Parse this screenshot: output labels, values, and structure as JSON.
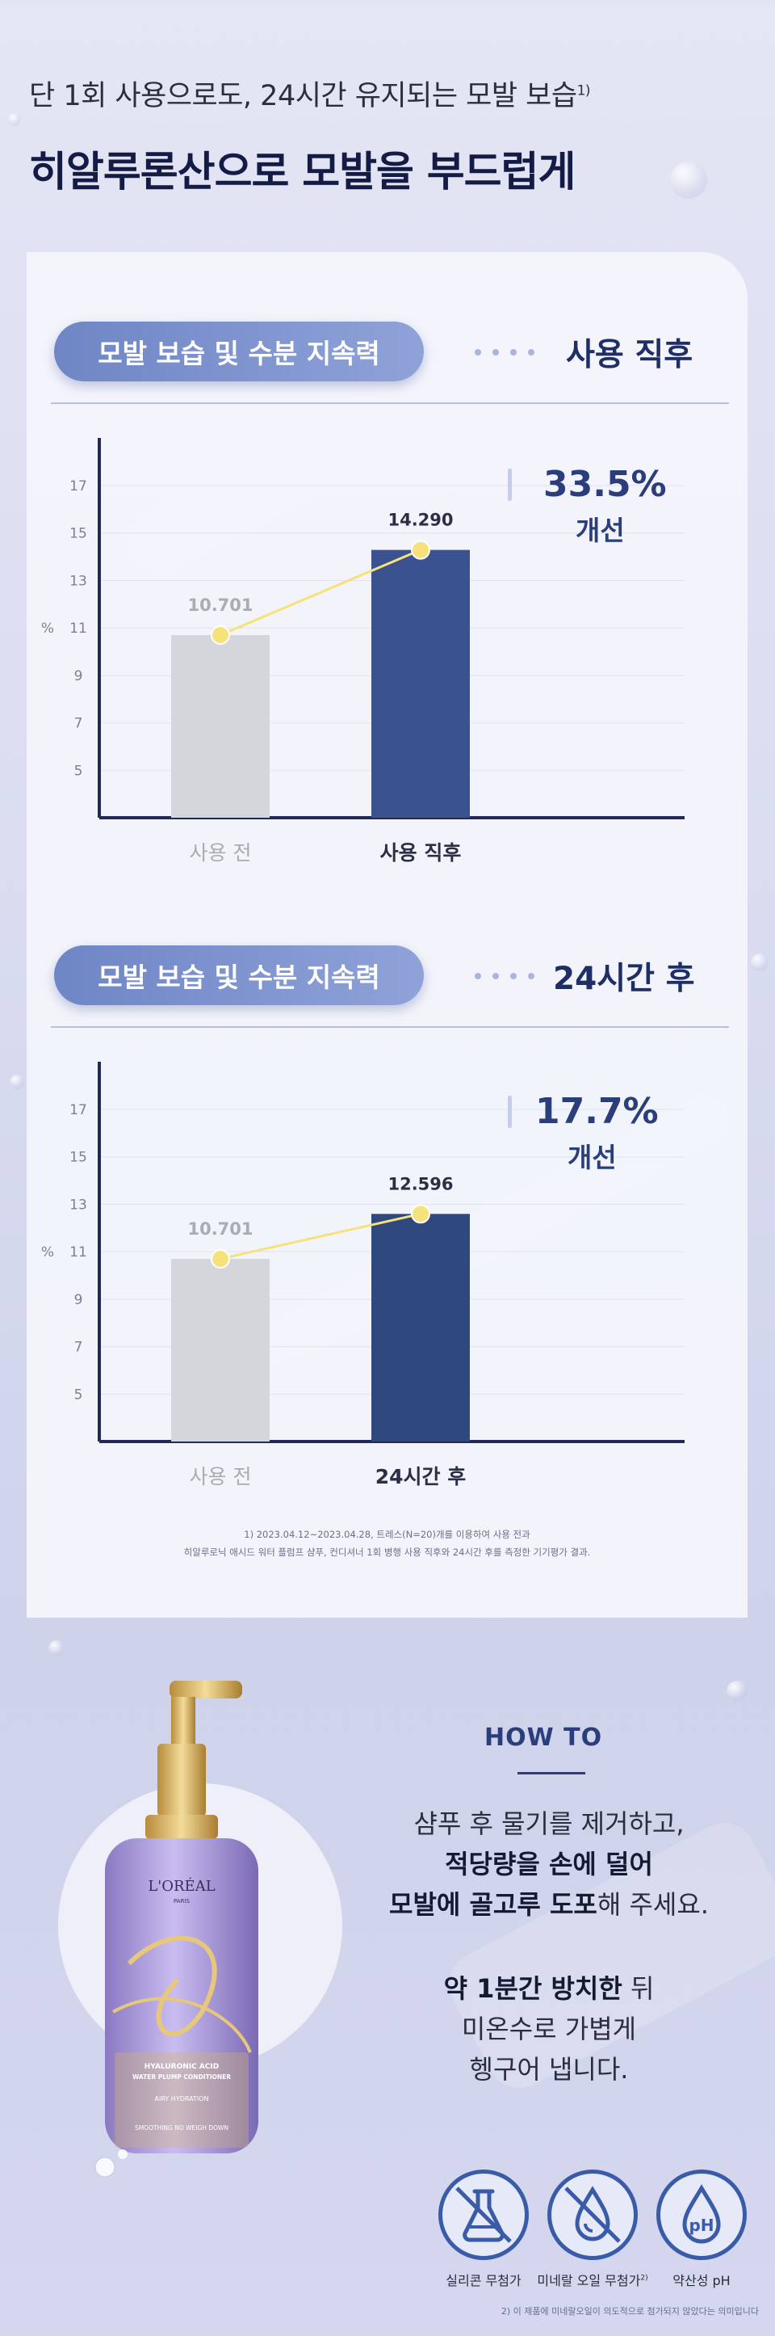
{
  "header": {
    "subtitle": "단 1회 사용으로도, 24시간 유지되는 모발 보습",
    "subtitle_sup": "1)",
    "headline": "히알루론산으로 모발을 부드럽게"
  },
  "sections": [
    {
      "pill_label": "모발 보습 및 수분 지속력",
      "stage_title": "사용 직후",
      "improvement_pct": "33.5%",
      "improvement_word": "개선"
    },
    {
      "pill_label": "모발 보습 및 수분 지속력",
      "stage_title": "24시간 후",
      "improvement_pct": "17.7%",
      "improvement_word": "개선"
    }
  ],
  "chart_data": [
    {
      "type": "bar",
      "categories": [
        "사용 전",
        "사용 직후"
      ],
      "values": [
        10.701,
        14.29
      ],
      "value_labels": [
        "10.701",
        "14.290"
      ],
      "ylabel": "%",
      "yticks": [
        5,
        7,
        9,
        11,
        13,
        15,
        17
      ],
      "ylim": [
        3,
        18.5
      ],
      "bar_colors": [
        "#d5d6dc",
        "#3a5290"
      ],
      "label_colors": [
        "#a9abb5",
        "#2b2f45"
      ],
      "trend_line": true,
      "grid": true
    },
    {
      "type": "bar",
      "categories": [
        "사용 전",
        "24시간 후"
      ],
      "values": [
        10.701,
        12.596
      ],
      "value_labels": [
        "10.701",
        "12.596"
      ],
      "ylabel": "%",
      "yticks": [
        5,
        7,
        9,
        11,
        13,
        15,
        17
      ],
      "ylim": [
        3,
        18.5
      ],
      "bar_colors": [
        "#d5d6dc",
        "#2f487d"
      ],
      "label_colors": [
        "#a9abb5",
        "#2b2f45"
      ],
      "trend_line": true,
      "grid": true
    }
  ],
  "footnote": {
    "line1": "1) 2023.04.12~2023.04.28, 트레스(N=20)개를 이용하여 사용 전과",
    "line2": "히알루로닉 애시드 워터 플럼프 샴푸, 컨디셔너 1회 병행 사용 직후와 24시간 후를 측정한 기기평가 결과."
  },
  "howto": {
    "title": "HOW TO",
    "step1_line1": "샴푸 후 물기를 제거하고,",
    "step1_line2_bold": "적당량을 손에 덜어",
    "step1_line3_bold": "모발에 골고루 도포",
    "step1_line3_rest": "해 주세요.",
    "step2_line1_bold": "약 1분간 방치한",
    "step2_line1_rest": " 뒤",
    "step2_line2": "미온수로 가볍게",
    "step2_line3": "헹구어 냅니다."
  },
  "product": {
    "brand": "L'ORÉAL",
    "brand_sub": "PARIS",
    "name_line1": "HYALURONIC ACID",
    "name_line2": "WATER PLUMP CONDITIONER",
    "claim1": "AIRY HYDRATION",
    "claim2": "SMOOTHING NO WEIGH DOWN"
  },
  "badges": [
    {
      "label": "실리콘 무첨가",
      "sup": "",
      "icon": "no-silicone-flask-icon"
    },
    {
      "label": "미네랄 오일 무첨가",
      "sup": "2)",
      "icon": "no-mineral-oil-drop-icon"
    },
    {
      "label": "약산성 pH",
      "sup": "",
      "icon": "ph-drop-icon",
      "icon_text": "pH"
    }
  ],
  "bottom_note": "2) 이 제품에 미네랄오일이 의도적으로 첨가되지 않았다는 의미입니다",
  "colors": {
    "accent": "#2b3e7c",
    "pill_start": "#6f86c6",
    "pill_end": "#8fa2d8",
    "bar_after": "#3a5290",
    "bar_before": "#d5d6dc",
    "trend": "#f6e27a"
  }
}
